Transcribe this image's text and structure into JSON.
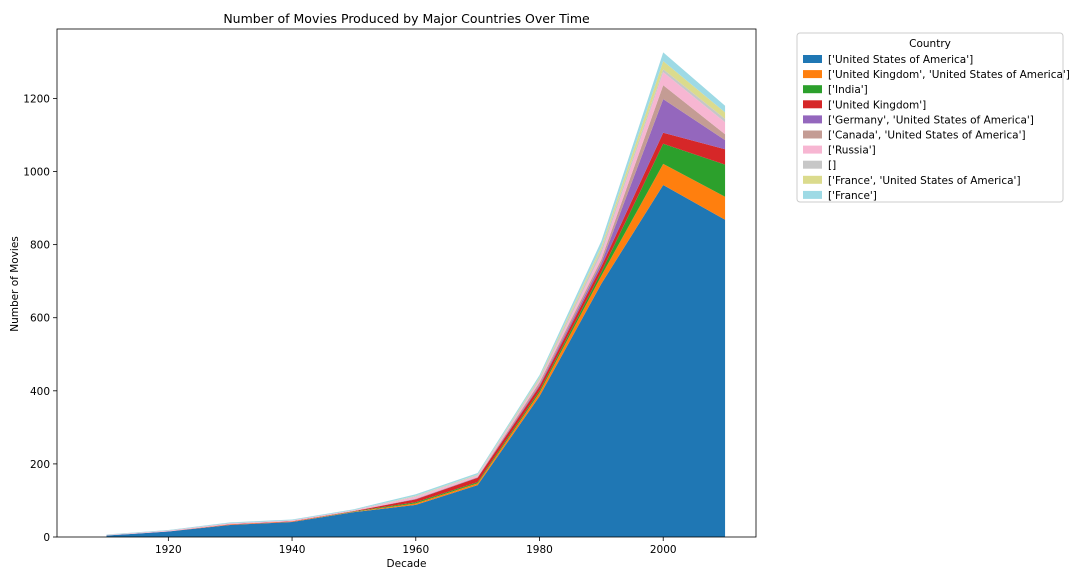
{
  "chart_data": {
    "type": "area",
    "stacked": true,
    "title": "Number of Movies Produced by Major Countries Over Time",
    "xlabel": "Decade",
    "ylabel": "Number of Movies",
    "x": [
      1910,
      1920,
      1930,
      1940,
      1950,
      1960,
      1970,
      1980,
      1990,
      2000,
      2010
    ],
    "xticks": [
      1920,
      1940,
      1960,
      1980,
      2000
    ],
    "yticks": [
      0,
      200,
      400,
      600,
      800,
      1000,
      1200
    ],
    "xlim": [
      1902,
      2015
    ],
    "ylim": [
      0,
      1390
    ],
    "grid": false,
    "legend": {
      "title": "Country",
      "placement": "outside-right-top"
    },
    "series": [
      {
        "name": "['United States of America']",
        "color": "#1f77b4",
        "values": [
          4,
          15,
          33,
          41,
          68,
          88,
          142,
          385,
          693,
          963,
          868
        ]
      },
      {
        "name": "['United Kingdom', 'United States of America']",
        "color": "#ff7f0e",
        "values": [
          0,
          0,
          1,
          1,
          1,
          4,
          5,
          10,
          22,
          58,
          63
        ]
      },
      {
        "name": "['India']",
        "color": "#2ca02c",
        "values": [
          0,
          0,
          0,
          0,
          1,
          3,
          3,
          5,
          10,
          55,
          88
        ]
      },
      {
        "name": "['United Kingdom']",
        "color": "#d62728",
        "values": [
          0,
          0,
          1,
          1,
          1,
          8,
          12,
          12,
          15,
          30,
          42
        ]
      },
      {
        "name": "['Germany', 'United States of America']",
        "color": "#9467bd",
        "values": [
          0,
          0,
          0,
          0,
          0,
          1,
          1,
          4,
          10,
          92,
          25
        ]
      },
      {
        "name": "['Canada', 'United States of America']",
        "color": "#c49c94",
        "values": [
          0,
          0,
          0,
          0,
          0,
          1,
          1,
          7,
          10,
          38,
          16
        ]
      },
      {
        "name": "['Russia']",
        "color": "#f7b6d2",
        "values": [
          1,
          2,
          2,
          2,
          2,
          5,
          4,
          6,
          15,
          36,
          33
        ]
      },
      {
        "name": "[]",
        "color": "#c7c7c7",
        "values": [
          1,
          1,
          1,
          1,
          1,
          2,
          2,
          5,
          12,
          8,
          9
        ]
      },
      {
        "name": "['France', 'United States of America']",
        "color": "#dbdb8d",
        "values": [
          0,
          0,
          0,
          0,
          0,
          1,
          1,
          3,
          8,
          22,
          18
        ]
      },
      {
        "name": "['France']",
        "color": "#9edae5",
        "values": [
          1,
          1,
          2,
          2,
          2,
          4,
          4,
          6,
          15,
          24,
          18
        ]
      }
    ]
  }
}
